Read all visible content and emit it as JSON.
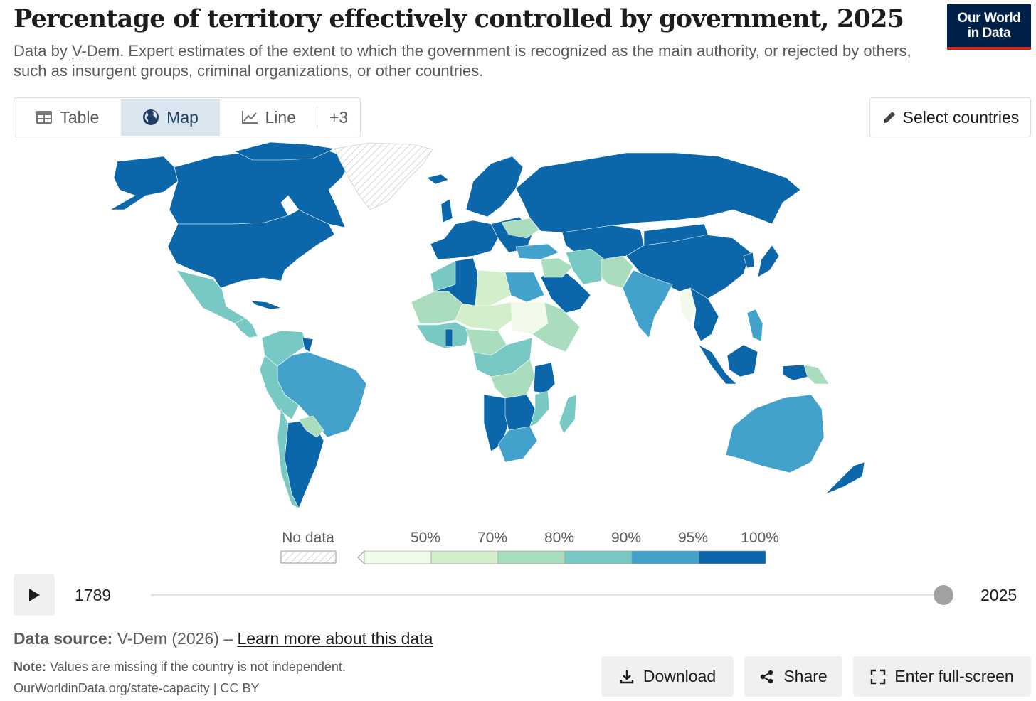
{
  "header": {
    "title": "Percentage of territory effectively controlled by government, 2025",
    "subtitle_prefix": "Data by ",
    "subtitle_link": "V-Dem",
    "subtitle_rest": ". Expert estimates of the extent to which the government is recognized as the main authority, or rejected by others, such as insurgent groups, criminal organizations, or other countries.",
    "logo_line1": "Our World",
    "logo_line2": "in Data"
  },
  "tabs": [
    {
      "label": "Table",
      "icon": "table-icon"
    },
    {
      "label": "Map",
      "icon": "globe-icon",
      "active": true
    },
    {
      "label": "Line",
      "icon": "line-chart-icon"
    },
    {
      "label": "+3"
    }
  ],
  "select_countries": {
    "label": "Select countries",
    "icon": "pencil-icon"
  },
  "legend": {
    "no_data_label": "No data",
    "bins": [
      {
        "label": "50%",
        "color": "#f1f9ea"
      },
      {
        "label": "70%",
        "color": "#d3eecb"
      },
      {
        "label": "80%",
        "color": "#a9ddbd"
      },
      {
        "label": "90%",
        "color": "#78c9c3"
      },
      {
        "label": "95%",
        "color": "#42a2cb"
      },
      {
        "label": "100%",
        "color": "#0b66aa"
      }
    ]
  },
  "timeline": {
    "start_year": "1789",
    "end_year": "2025",
    "selected_year": 2025
  },
  "footer": {
    "source_label": "Data source:",
    "source_text": " V-Dem (2026) – ",
    "learn_more": "Learn more about this data",
    "note_label": "Note:",
    "note_text": " Values are missing if the country is not independent.",
    "credit": "OurWorldinData.org/state-capacity | CC BY"
  },
  "actions": {
    "download": "Download",
    "share": "Share",
    "fullscreen": "Enter full-screen"
  },
  "colors": {
    "c100": "#0b66aa",
    "c95": "#42a2cb",
    "c90": "#78c9c3",
    "c80": "#a9ddbd",
    "c70": "#d3eecb",
    "c50": "#f1f9ea",
    "nodata": "#ffffff"
  }
}
